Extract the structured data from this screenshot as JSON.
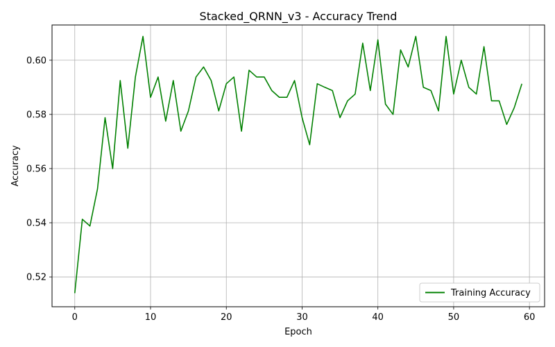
{
  "chart_data": {
    "type": "line",
    "title": "Stacked_QRNN_v3 - Accuracy Trend",
    "xlabel": "Epoch",
    "ylabel": "Accuracy",
    "xlim": [
      -3,
      62
    ],
    "ylim": [
      0.509,
      0.613
    ],
    "xticks": [
      0,
      10,
      20,
      30,
      40,
      50,
      60
    ],
    "yticks": [
      0.52,
      0.54,
      0.56,
      0.58,
      0.6
    ],
    "ytick_labels": [
      "0.52",
      "0.54",
      "0.56",
      "0.58",
      "0.60"
    ],
    "grid": true,
    "legend_position": "lower-right",
    "series": [
      {
        "name": "Training Accuracy",
        "color": "#008000",
        "x": [
          0,
          1,
          2,
          3,
          4,
          5,
          6,
          7,
          8,
          9,
          10,
          11,
          12,
          13,
          14,
          15,
          16,
          17,
          18,
          19,
          20,
          21,
          22,
          23,
          24,
          25,
          26,
          27,
          28,
          29,
          30,
          31,
          32,
          33,
          34,
          35,
          36,
          37,
          38,
          39,
          40,
          41,
          42,
          43,
          44,
          45,
          46,
          47,
          48,
          49,
          50,
          51,
          52,
          53,
          54,
          55,
          56,
          57,
          58,
          59
        ],
        "values": [
          0.514,
          0.5413,
          0.5388,
          0.5525,
          0.5788,
          0.56,
          0.5925,
          0.5675,
          0.5938,
          0.6088,
          0.5863,
          0.5938,
          0.5775,
          0.5925,
          0.5738,
          0.5813,
          0.5938,
          0.5975,
          0.5925,
          0.5813,
          0.5913,
          0.5938,
          0.5738,
          0.5963,
          0.5938,
          0.5938,
          0.5888,
          0.5863,
          0.5863,
          0.5925,
          0.5788,
          0.5688,
          0.5913,
          0.59,
          0.5888,
          0.5788,
          0.585,
          0.5875,
          0.6063,
          0.5888,
          0.6075,
          0.5838,
          0.58,
          0.6038,
          0.5975,
          0.6088,
          0.59,
          0.5888,
          0.5813,
          0.6088,
          0.5875,
          0.6,
          0.59,
          0.5875,
          0.605,
          0.585,
          0.585,
          0.5763,
          0.5825,
          0.5913
        ]
      }
    ]
  }
}
